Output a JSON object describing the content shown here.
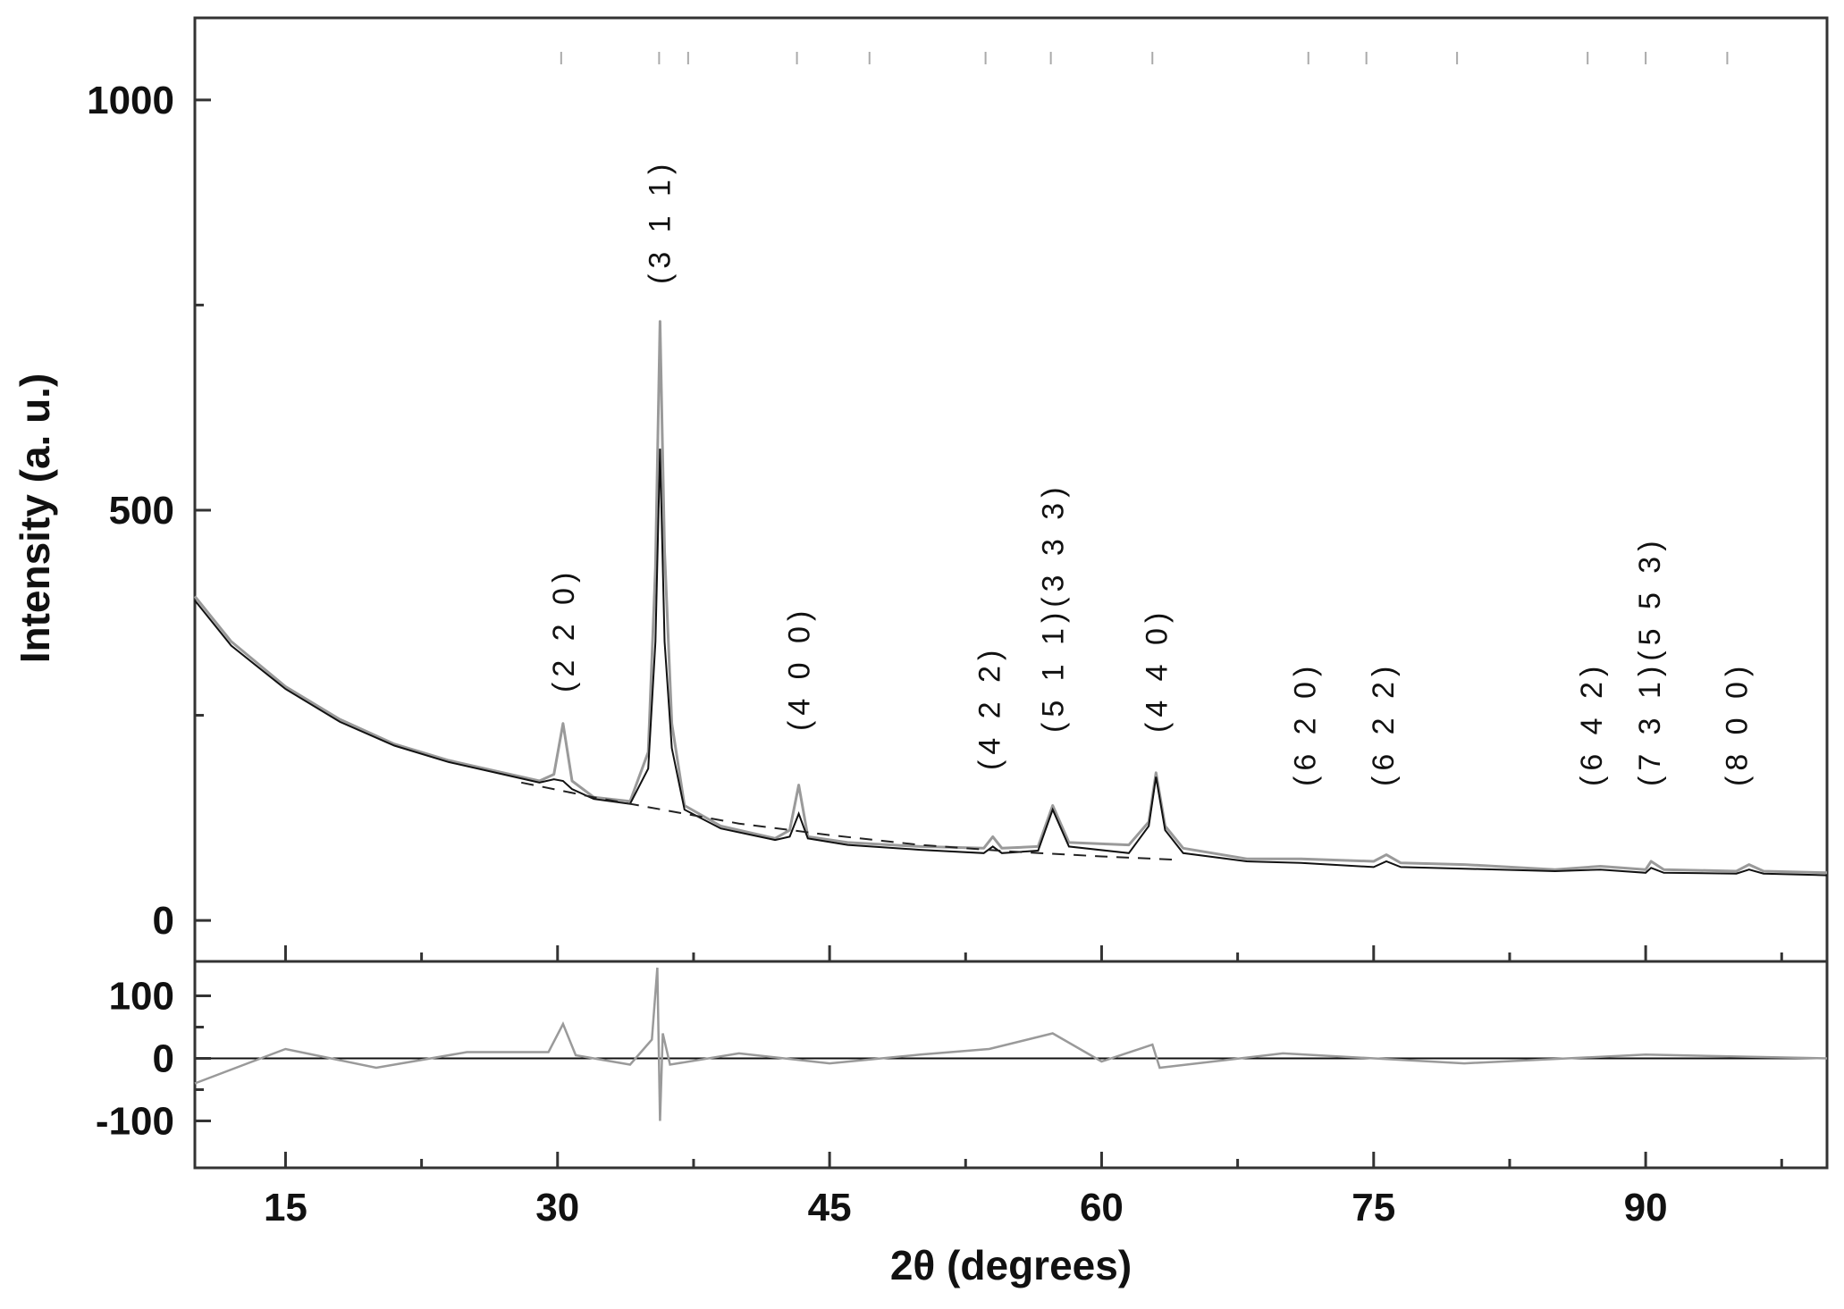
{
  "chart_data": [
    {
      "type": "line",
      "panel": "main",
      "xlabel": "2θ (degrees)",
      "ylabel": "Intensity (a. u.)",
      "xlim": [
        10,
        100
      ],
      "ylim": [
        -50,
        1100
      ],
      "x_ticks": [
        "15",
        "30",
        "45",
        "60",
        "75",
        "90"
      ],
      "y_ticks": [
        "0",
        "500",
        "1000"
      ],
      "series": [
        {
          "role": "observed",
          "color": "#9a9a9a",
          "x": [
            10,
            12,
            15,
            18,
            21,
            24,
            27,
            29,
            29.8,
            30.3,
            30.8,
            32,
            34,
            35.0,
            35.4,
            35.65,
            35.9,
            36.3,
            37,
            39,
            42,
            42.8,
            43.3,
            43.8,
            46,
            50,
            53.5,
            54,
            54.5,
            56.5,
            57.3,
            58.2,
            61.5,
            62.6,
            63.0,
            63.5,
            64.5,
            68,
            71,
            75,
            75.7,
            76.5,
            80,
            85,
            87.5,
            90,
            90.3,
            91,
            95,
            95.7,
            96.5,
            100
          ],
          "y": [
            395,
            340,
            285,
            245,
            215,
            195,
            180,
            170,
            178,
            240,
            170,
            150,
            145,
            205,
            430,
            730,
            450,
            240,
            140,
            115,
            100,
            110,
            165,
            102,
            95,
            90,
            88,
            102,
            88,
            90,
            140,
            95,
            92,
            120,
            180,
            115,
            88,
            75,
            75,
            72,
            80,
            70,
            68,
            62,
            66,
            62,
            72,
            62,
            60,
            68,
            60,
            58
          ]
        },
        {
          "role": "calculated",
          "color": "#111111",
          "x": [
            10,
            12,
            15,
            18,
            21,
            24,
            27,
            29,
            29.8,
            30.3,
            30.8,
            32,
            34,
            35.0,
            35.4,
            35.65,
            35.9,
            36.3,
            37,
            39,
            42,
            42.8,
            43.3,
            43.8,
            46,
            50,
            53.5,
            54,
            54.5,
            56.5,
            57.3,
            58.2,
            61.5,
            62.6,
            63.0,
            63.5,
            64.5,
            68,
            71,
            75,
            75.7,
            76.5,
            80,
            85,
            87.5,
            90,
            90.3,
            91,
            95,
            95.7,
            96.5,
            100
          ],
          "y": [
            390,
            335,
            282,
            242,
            213,
            193,
            178,
            168,
            172,
            170,
            160,
            148,
            142,
            185,
            340,
            575,
            340,
            210,
            135,
            112,
            98,
            102,
            130,
            100,
            92,
            86,
            82,
            90,
            82,
            85,
            135,
            90,
            82,
            115,
            175,
            110,
            82,
            72,
            70,
            65,
            72,
            65,
            63,
            60,
            62,
            58,
            64,
            58,
            57,
            62,
            57,
            55
          ]
        },
        {
          "role": "background",
          "style": "dashed",
          "x": [
            28,
            32,
            36,
            40,
            45,
            50,
            55,
            60,
            64
          ],
          "y": [
            168,
            150,
            134,
            118,
            104,
            92,
            84,
            78,
            74
          ]
        }
      ],
      "annotations": [
        {
          "text": "(2 2 0)",
          "x": 30.3
        },
        {
          "text": "(3 1 1)",
          "x": 35.6
        },
        {
          "text": "(4 0 0)",
          "x": 43.3
        },
        {
          "text": "(4 2 2)",
          "x": 53.8
        },
        {
          "text": "(5 1 1)(3 3 3)",
          "x": 57.3
        },
        {
          "text": "(4 4 0)",
          "x": 63.0
        },
        {
          "text": "(6 2 0)",
          "x": 71.2
        },
        {
          "text": "(6 2 2)",
          "x": 75.5
        },
        {
          "text": "(6 4 2)",
          "x": 87.0
        },
        {
          "text": "(7 3 1)(5 5 3)",
          "x": 90.2
        },
        {
          "text": "(8 0 0)",
          "x": 95.0
        }
      ],
      "bragg_positions": [
        30.2,
        35.6,
        37.2,
        43.2,
        47.2,
        53.6,
        57.2,
        62.8,
        71.4,
        74.6,
        79.6,
        86.8,
        90.0,
        94.5
      ]
    },
    {
      "type": "line",
      "panel": "difference",
      "xlim": [
        10,
        100
      ],
      "ylim": [
        -175,
        155
      ],
      "y_ticks": [
        "100",
        "0",
        "-100"
      ],
      "series": [
        {
          "role": "difference",
          "color": "#9a9a9a",
          "x": [
            10,
            15,
            20,
            25,
            29.5,
            30.3,
            31,
            34,
            35.2,
            35.5,
            35.65,
            35.8,
            36.2,
            40,
            45,
            50,
            53.8,
            57.3,
            60,
            62.8,
            63.2,
            70,
            80,
            90,
            100
          ],
          "y": [
            -40,
            15,
            -15,
            10,
            10,
            55,
            5,
            -10,
            30,
            145,
            -100,
            40,
            -10,
            8,
            -8,
            6,
            15,
            40,
            -5,
            22,
            -15,
            8,
            -8,
            6,
            0
          ]
        }
      ]
    }
  ]
}
